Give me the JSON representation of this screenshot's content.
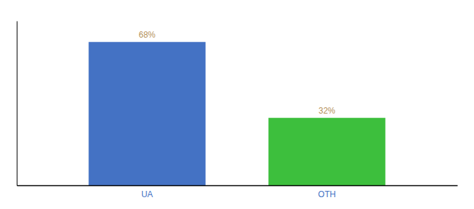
{
  "chart_data": {
    "type": "bar",
    "categories": [
      "UA",
      "OTH"
    ],
    "values": [
      68,
      32
    ],
    "value_labels": [
      "68%",
      "32%"
    ],
    "colors": [
      "#4472c4",
      "#3dbf3d"
    ],
    "ylim": [
      0,
      78
    ],
    "data_labels": true,
    "tick_labels": "x",
    "grid": false
  }
}
